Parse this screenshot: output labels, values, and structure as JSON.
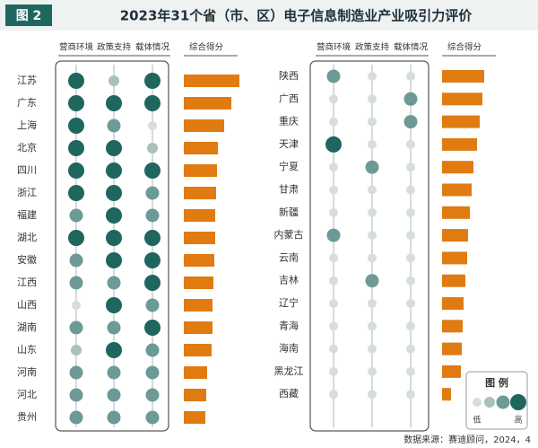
{
  "figure_label": "图 2",
  "chart_data": {
    "type": "dot_matrix",
    "title": "2023年31个省（市、区）电子信息制造业产业吸引力评价",
    "criteria": [
      "营商环境",
      "政策支持",
      "载体情况"
    ],
    "score_label": "综合得分",
    "level_colors": [
      "#d6dedd",
      "#a9c0be",
      "#6c9a97",
      "#1f665f"
    ],
    "bar_color": "#e07b12",
    "panels": [
      {
        "regions": [
          "江苏",
          "广东",
          "上海",
          "北京",
          "四川",
          "浙江",
          "福建",
          "湖北",
          "安徽",
          "江西",
          "山西",
          "湖南",
          "山东",
          "河南",
          "河北",
          "贵州"
        ],
        "levels": [
          [
            4,
            2,
            4
          ],
          [
            4,
            4,
            4
          ],
          [
            4,
            3,
            1
          ],
          [
            4,
            4,
            2
          ],
          [
            4,
            4,
            4
          ],
          [
            4,
            4,
            3
          ],
          [
            3,
            4,
            3
          ],
          [
            4,
            4,
            4
          ],
          [
            3,
            4,
            4
          ],
          [
            3,
            3,
            4
          ],
          [
            1,
            4,
            3
          ],
          [
            3,
            3,
            4
          ],
          [
            2,
            4,
            3
          ],
          [
            3,
            3,
            3
          ],
          [
            3,
            3,
            3
          ],
          [
            3,
            3,
            3
          ]
        ],
        "scores": [
          62,
          53,
          45,
          38,
          37,
          36,
          35,
          35,
          34,
          33,
          32,
          32,
          31,
          26,
          25,
          24
        ]
      },
      {
        "regions": [
          "陕西",
          "广西",
          "重庆",
          "天津",
          "宁夏",
          "甘肃",
          "新疆",
          "内蒙古",
          "云南",
          "吉林",
          "辽宁",
          "青海",
          "海南",
          "黑龙江",
          "西藏"
        ],
        "levels": [
          [
            3,
            1,
            1
          ],
          [
            1,
            1,
            3
          ],
          [
            1,
            1,
            3
          ],
          [
            4,
            1,
            1
          ],
          [
            1,
            3,
            1
          ],
          [
            1,
            1,
            1
          ],
          [
            1,
            1,
            1
          ],
          [
            3,
            1,
            1
          ],
          [
            1,
            1,
            1
          ],
          [
            1,
            3,
            1
          ],
          [
            1,
            1,
            1
          ],
          [
            1,
            1,
            1
          ],
          [
            1,
            1,
            1
          ],
          [
            1,
            1,
            1
          ],
          [
            1,
            1,
            1
          ]
        ],
        "scores": [
          47,
          45,
          42,
          39,
          35,
          33,
          31,
          29,
          28,
          26,
          24,
          23,
          22,
          21,
          10
        ]
      }
    ]
  },
  "legend": {
    "title": "图 例",
    "low": "低",
    "high": "高"
  },
  "source": "数据来源：赛迪顾问，2024，4"
}
